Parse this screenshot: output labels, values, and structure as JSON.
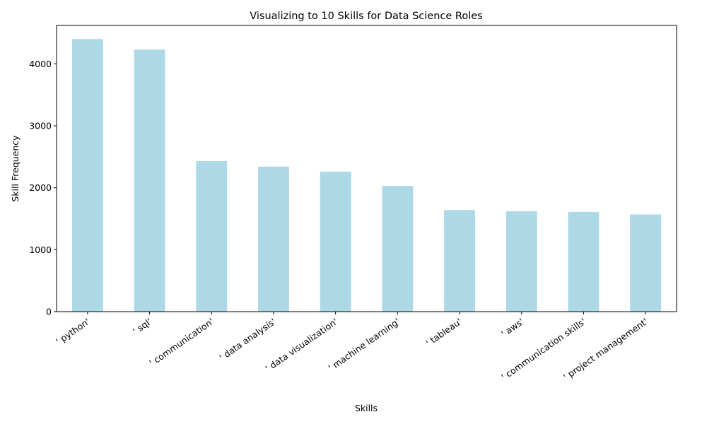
{
  "chart_data": {
    "type": "bar",
    "title": "Visualizing to 10 Skills for Data Science Roles",
    "xlabel": "Skills",
    "ylabel": "Skill Frequency",
    "categories": [
      "' python'",
      "' sql'",
      "' communication'",
      "' data analysis'",
      "' data visualization'",
      "' machine learning'",
      "' tableau'",
      "' aws'",
      "' communication skills'",
      "' project management'"
    ],
    "values": [
      4400,
      4230,
      2430,
      2340,
      2260,
      2030,
      1640,
      1620,
      1610,
      1570
    ],
    "ylim": [
      0,
      4620
    ],
    "yticks": [
      0,
      1000,
      2000,
      3000,
      4000
    ],
    "ytick_labels": [
      "0",
      "1000",
      "2000",
      "3000",
      "4000"
    ],
    "grid": false,
    "bar_color": "#add8e6"
  }
}
